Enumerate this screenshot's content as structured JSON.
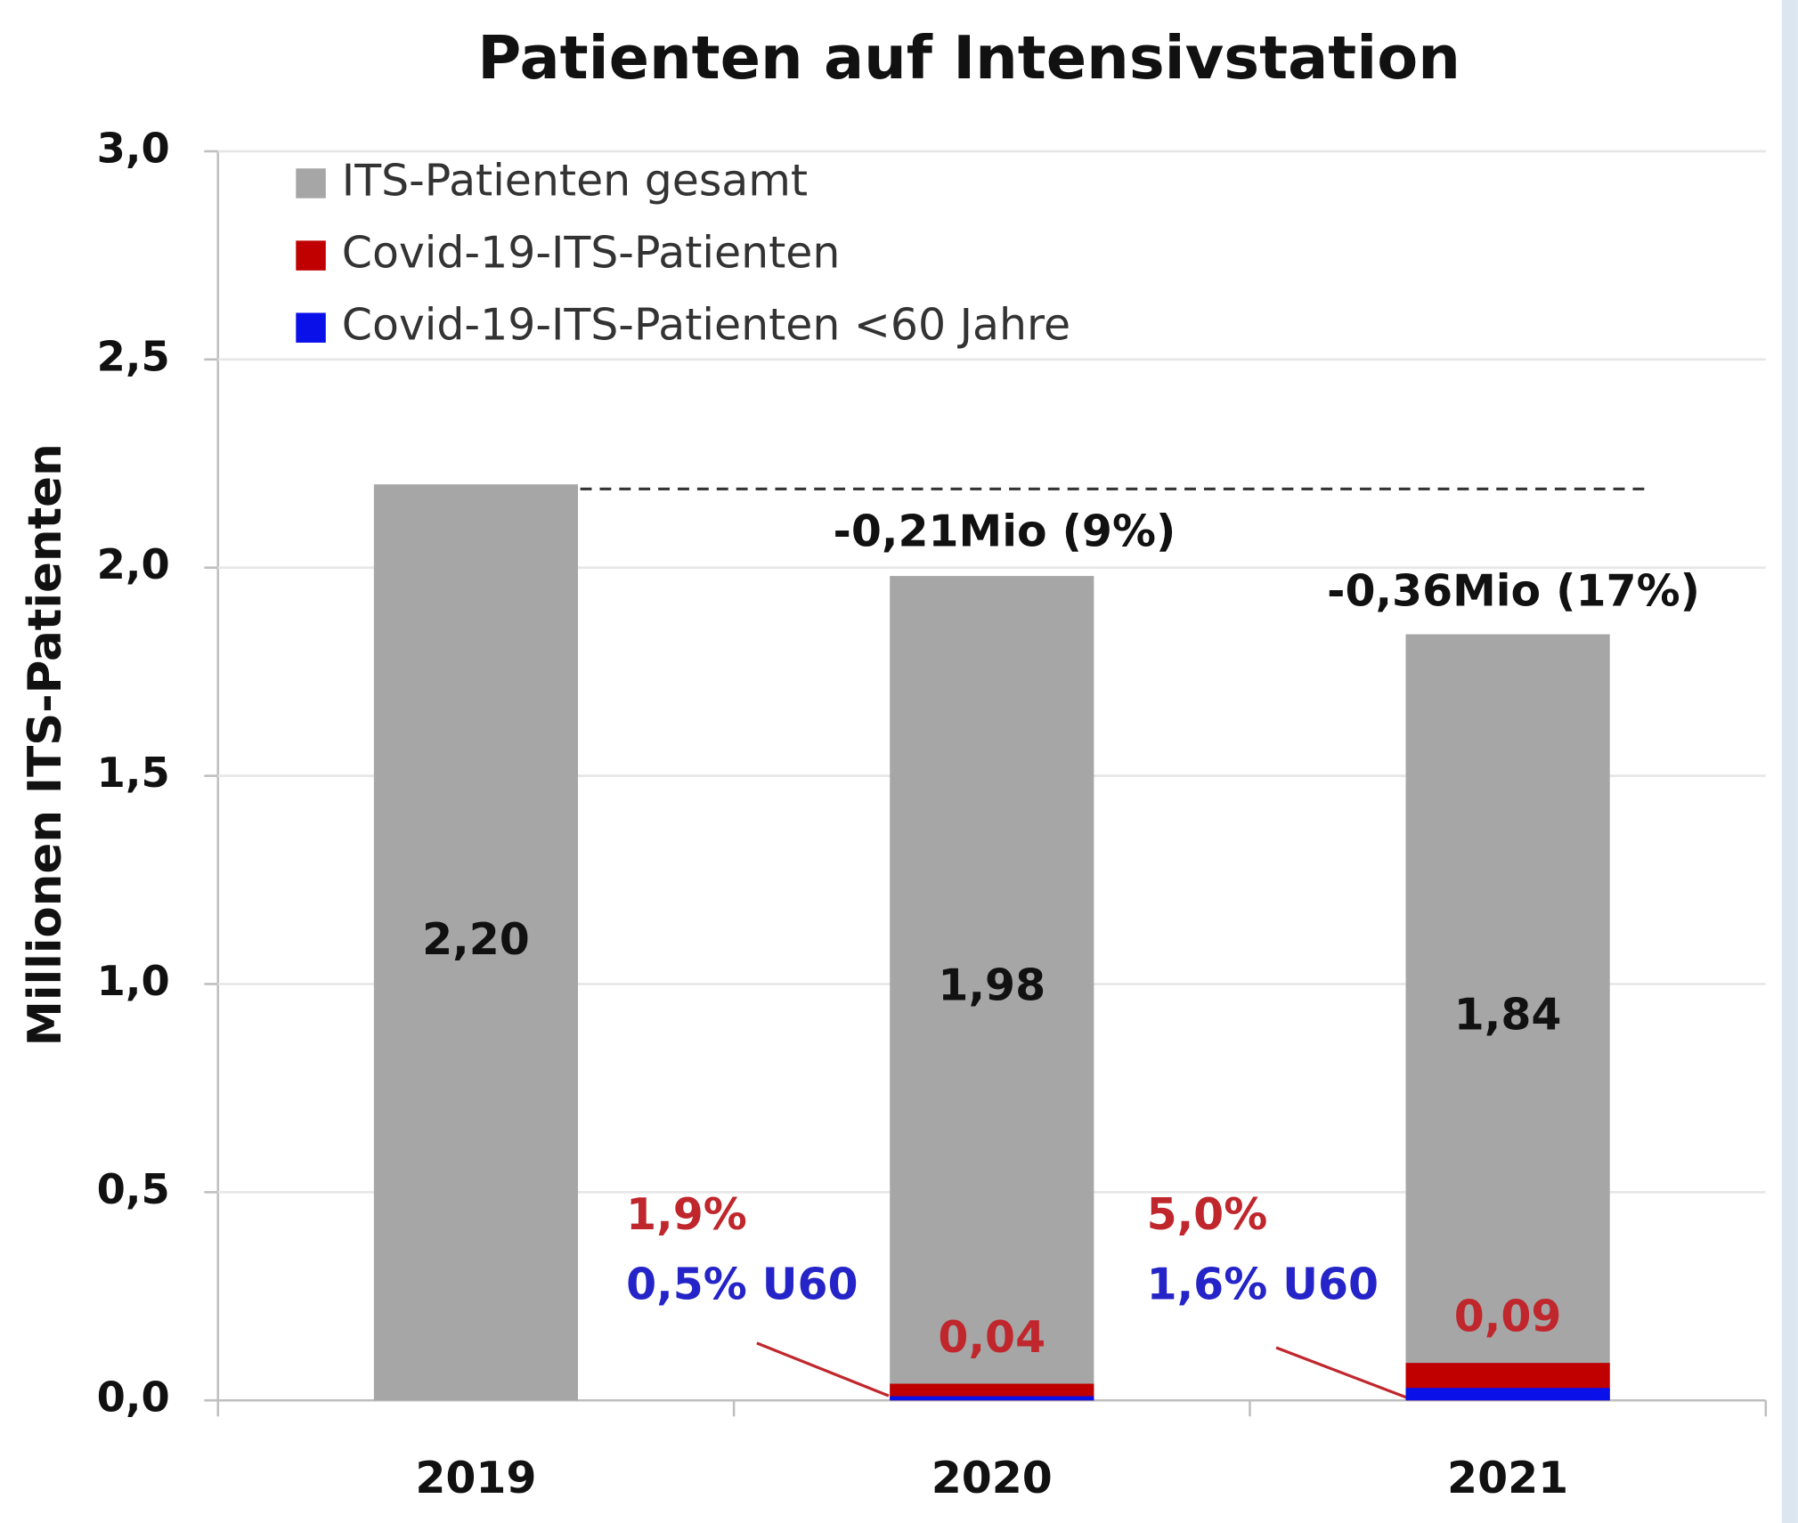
{
  "chart_data": {
    "type": "bar",
    "title": "Patienten auf Intensivstation",
    "ylabel": "Millionen ITS-Patienten",
    "categories": [
      "2019",
      "2020",
      "2021"
    ],
    "series": [
      {
        "name": "ITS-Patienten gesamt",
        "color": "#a6a6a6",
        "values": [
          2.2,
          1.98,
          1.84
        ],
        "value_labels": [
          "2,20",
          "1,98",
          "1,84"
        ],
        "label_color": "#111111"
      },
      {
        "name": "Covid-19-ITS-Patienten",
        "color": "#c00000",
        "values": [
          null,
          0.04,
          0.09
        ],
        "value_labels": [
          null,
          "0,04",
          "0,09"
        ],
        "label_color": "#c0272d"
      },
      {
        "name": "Covid-19-ITS-Patienten <60 Jahre",
        "color": "#0a10e8",
        "values": [
          null,
          0.01,
          0.03
        ]
      }
    ],
    "ylim": [
      0,
      3
    ],
    "yticks": [
      {
        "value": 0,
        "label": "0,0"
      },
      {
        "value": 0.5,
        "label": "0,5"
      },
      {
        "value": 1,
        "label": "1,0"
      },
      {
        "value": 1.5,
        "label": "1,5"
      },
      {
        "value": 2,
        "label": "2,0"
      },
      {
        "value": 2.5,
        "label": "2,5"
      },
      {
        "value": 3,
        "label": "3,0"
      }
    ],
    "grid": true,
    "legend": "top-left",
    "annotations": [
      {
        "text": "-0,21Mio (9%)",
        "color": "#111111"
      },
      {
        "text": "-0,36Mio (17%)",
        "color": "#111111"
      },
      {
        "text": "1,9%",
        "color": "#c0272d"
      },
      {
        "text": "0,5% U60",
        "color": "#2424c8"
      },
      {
        "text": "5,0%",
        "color": "#c0272d"
      },
      {
        "text": "1,6% U60",
        "color": "#2424c8"
      }
    ]
  }
}
